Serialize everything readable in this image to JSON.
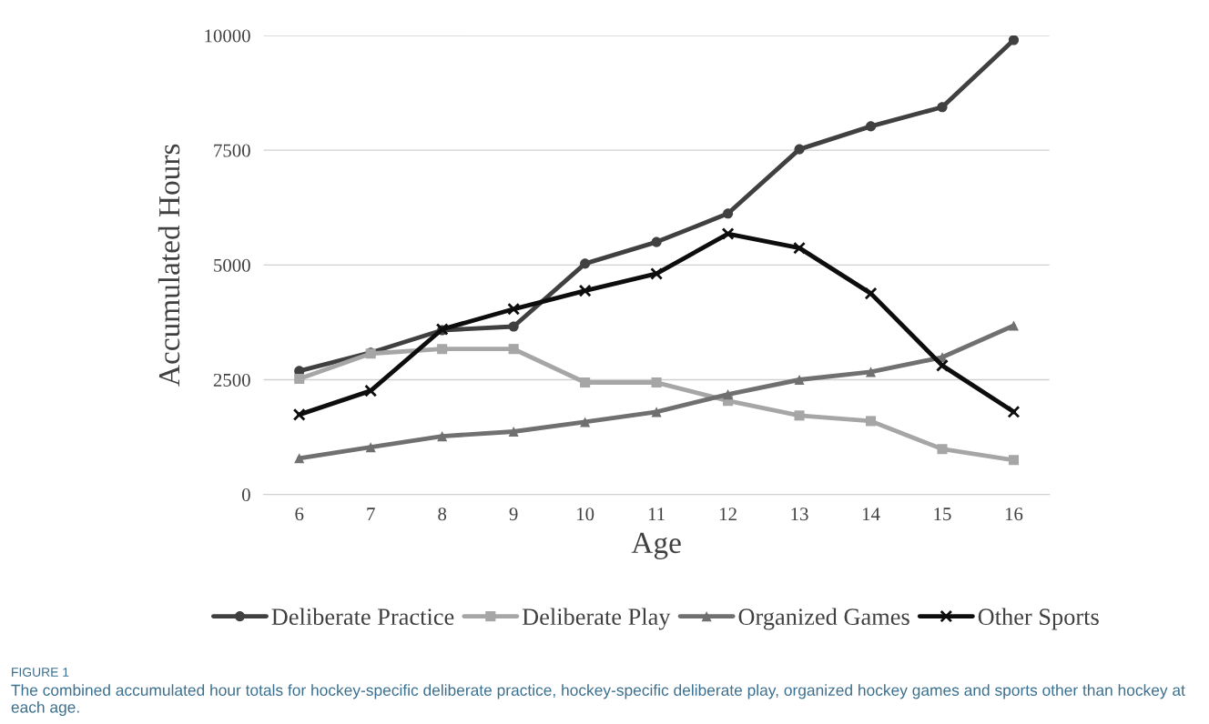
{
  "chart_data": {
    "type": "line",
    "xlabel": "Age",
    "ylabel": "Accumulated Hours",
    "categories": [
      "6",
      "7",
      "8",
      "9",
      "10",
      "11",
      "12",
      "13",
      "14",
      "15",
      "16"
    ],
    "series": [
      {
        "name": "Deliberate Practice",
        "color": "#404040",
        "marker": "circle",
        "values": [
          2690,
          3090,
          3580,
          3660,
          5030,
          5500,
          6120,
          7520,
          8020,
          8440,
          9900
        ]
      },
      {
        "name": "Deliberate Play",
        "color": "#a6a6a6",
        "marker": "square",
        "values": [
          2520,
          3070,
          3170,
          3170,
          2440,
          2440,
          2040,
          1720,
          1600,
          990,
          750
        ]
      },
      {
        "name": "Organized Games",
        "color": "#707070",
        "marker": "triangle",
        "values": [
          790,
          1030,
          1270,
          1370,
          1580,
          1800,
          2180,
          2500,
          2670,
          2990,
          3680
        ]
      },
      {
        "name": "Other Sports",
        "color": "#0d0d0d",
        "marker": "cross",
        "values": [
          1740,
          2260,
          3600,
          4040,
          4440,
          4810,
          5680,
          5370,
          4380,
          2810,
          1800
        ]
      }
    ],
    "ylim": [
      0,
      10000
    ],
    "yticks": [
      0,
      2500,
      5000,
      7500,
      10000
    ],
    "grid": "y",
    "legend": "bottom",
    "line_style": "solid",
    "annotations": [
      "FIGURE 1",
      "The combined accumulated hour totals for hockey-specific deliberate practice, hockey-specific deliberate play, organized hockey games and sports other than hockey at each age."
    ]
  }
}
